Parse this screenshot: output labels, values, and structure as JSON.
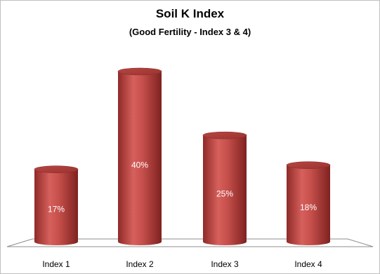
{
  "chart_data": {
    "type": "bar",
    "title": "Soil K Index",
    "subtitle": "(Good Fertility - Index 3 & 4)",
    "categories": [
      "Index 1",
      "Index 2",
      "Index 3",
      "Index 4"
    ],
    "values": [
      17,
      40,
      25,
      18
    ],
    "value_labels": [
      "17%",
      "40%",
      "25%",
      "18%"
    ],
    "unit": "%",
    "bar_style": "3d-cylinder",
    "bar_color": "#c0504d",
    "grid": false,
    "legend": "none"
  }
}
